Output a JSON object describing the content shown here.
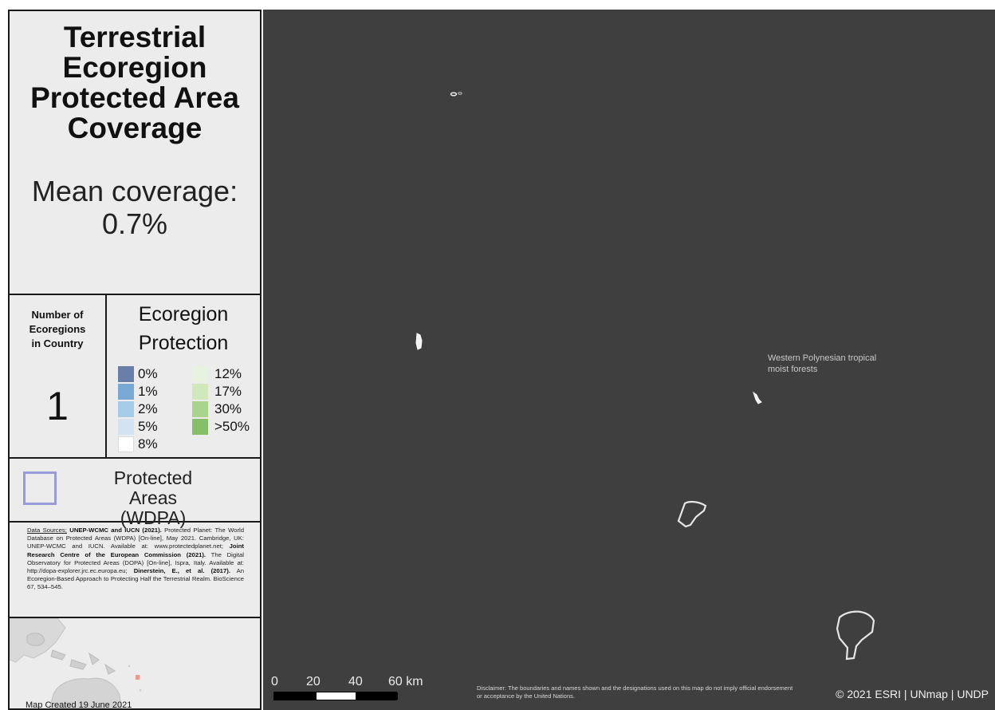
{
  "title": "Terrestrial Ecoregion Protected Area Coverage",
  "mean_coverage": "Mean coverage: 0.7%",
  "count": {
    "label": "Number of Ecoregions in Country",
    "value": "1"
  },
  "protection_legend": {
    "title": "Ecoregion Protection",
    "items": [
      {
        "label": "0%",
        "color": "#6a7fa8"
      },
      {
        "label": "1%",
        "color": "#7aa8d4"
      },
      {
        "label": "2%",
        "color": "#a6cbe6"
      },
      {
        "label": "5%",
        "color": "#d3e3f1"
      },
      {
        "label": "8%",
        "color": "#ffffff"
      },
      {
        "label": "12%",
        "color": "#e7f3de"
      },
      {
        "label": "17%",
        "color": "#cfe8bc"
      },
      {
        "label": "30%",
        "color": "#a9d48c"
      },
      {
        "label": ">50%",
        "color": "#86bf6a"
      }
    ]
  },
  "protected_areas": {
    "label": "Protected Areas (WDPA)",
    "color": "#9a9ad6"
  },
  "sources": {
    "intro": "Data Sources;",
    "a1": "UNEP-WCMC and IUCN (2021).",
    "t1": " Protected Planet: The World Database on Protected Areas (WDPA) [On-line], May 2021. Cambridge, UK: UNEP-WCMC and IUCN. Available at: www.protectedplanet.net; ",
    "a2": "Joint Research Centre of the European Commission (2021).",
    "t2": " The Digital Observatory for Protected Areas (DOPA) [On-line], Ispra, Italy. Available at: http://dopa-explorer.jrc.ec.europa.eu; ",
    "a3": "Dinerstein, E., et al. (2017).",
    "t3": " An Ecoregion-Based Approach to Protecting Half the Terrestrial Realm. BioScience 67, 534–545."
  },
  "created": "Map Created 19 June 2021",
  "map": {
    "background": "#3f3f3f",
    "ecoregion_label": "Western Polynesian tropical moist forests",
    "scale_labels": [
      "0",
      "20",
      "40",
      "60 km"
    ],
    "disclaimer": "Disclaimer: The boundaries and names shown and the designations used on this map do not imply official endorsement or acceptance by the United Nations.",
    "copyright": "© 2021 ESRI | UNmap | UNDP"
  }
}
